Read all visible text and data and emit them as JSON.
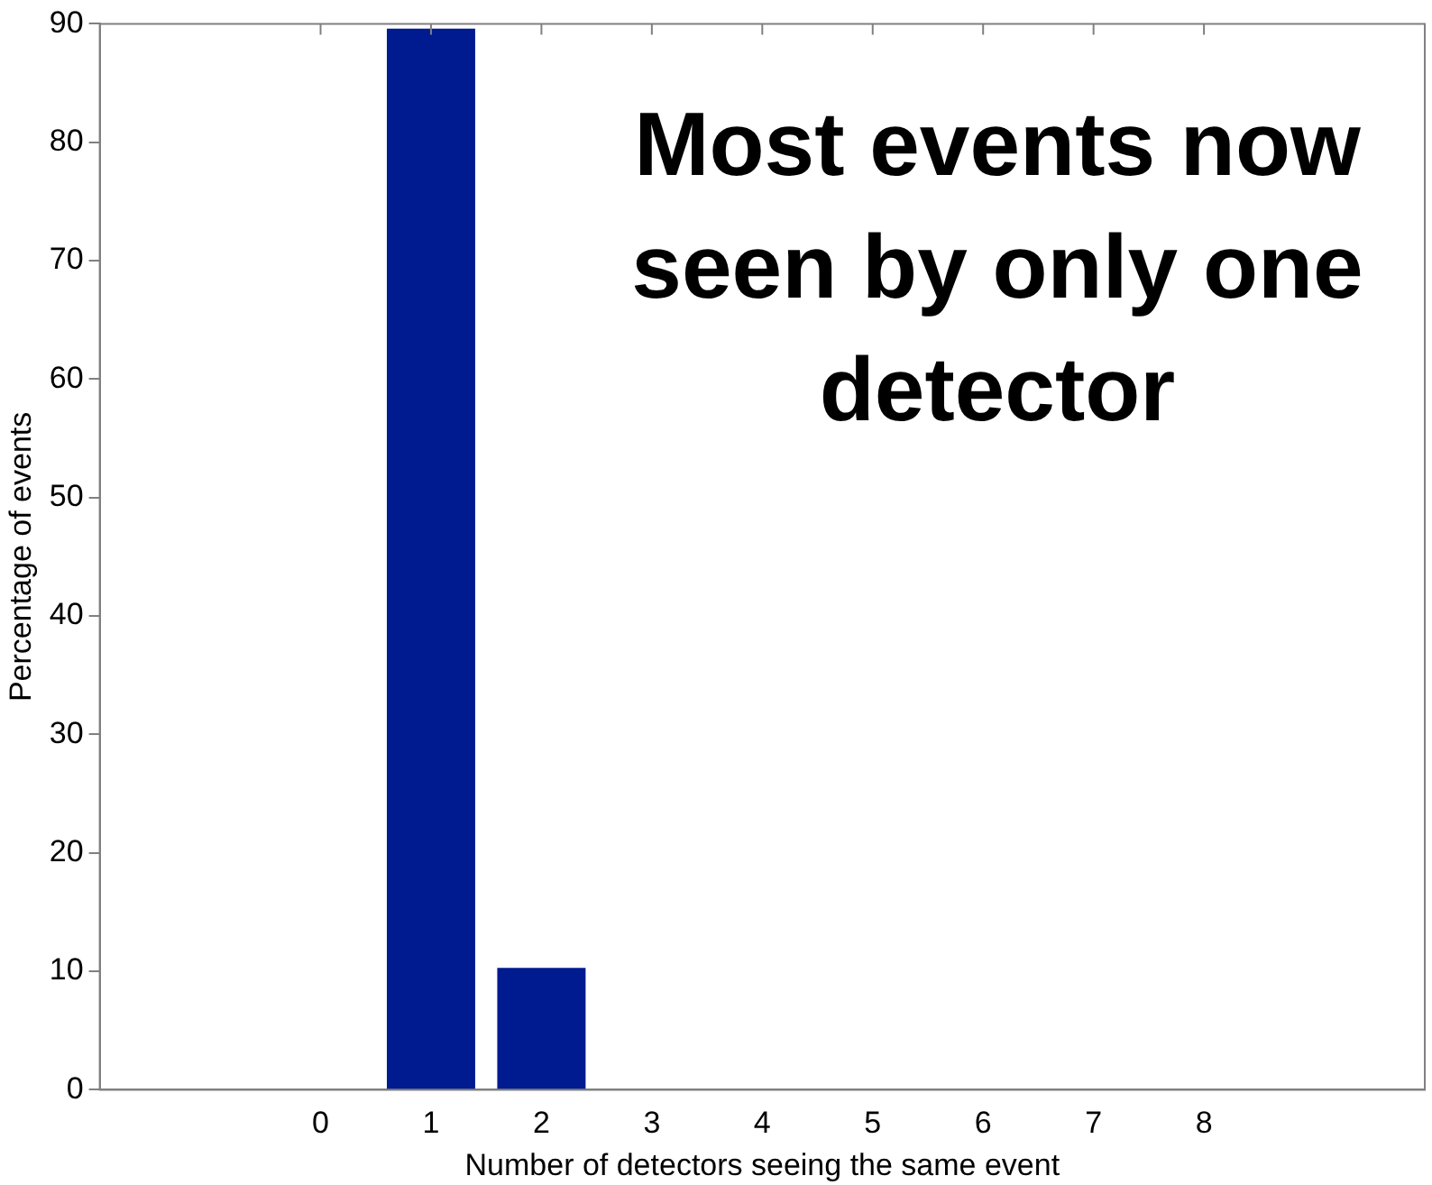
{
  "chart_data": {
    "type": "bar",
    "xlabel": "Number of detectors seeing the same event",
    "ylabel": "Percentage of events",
    "x": [
      0,
      1,
      2,
      3,
      4,
      5,
      6,
      7,
      8
    ],
    "values": [
      0,
      89.6,
      10.3,
      0,
      0,
      0,
      0,
      0,
      0
    ],
    "color": "#001a8f",
    "xlim": [
      -2,
      10
    ],
    "xticks": [
      0,
      1,
      2,
      3,
      4,
      5,
      6,
      7,
      8
    ],
    "ylim": [
      0,
      90
    ],
    "yticks": [
      0,
      10,
      20,
      30,
      40,
      50,
      60,
      70,
      80,
      90
    ],
    "grid": false,
    "annotations": [
      "Most events now seen by only one detector"
    ]
  }
}
